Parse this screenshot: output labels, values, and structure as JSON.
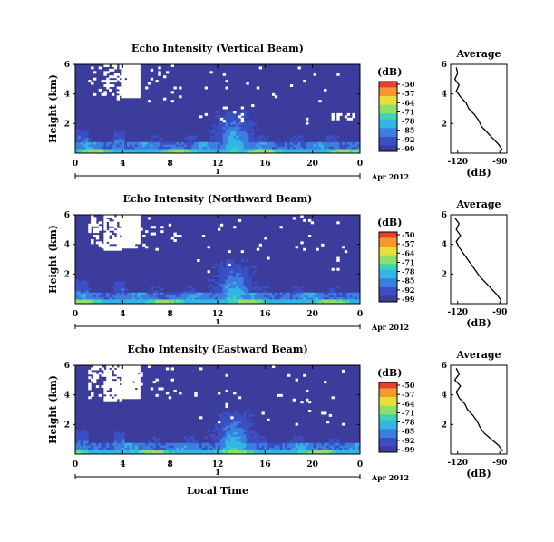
{
  "chart_data": [
    {
      "type": "heatmap",
      "title": "Echo Intensity (Vertical Beam)",
      "ylabel": "Height (km)",
      "xlim": [
        0,
        24
      ],
      "ylim": [
        0,
        6
      ],
      "x_ticks": [
        "0",
        "4",
        "8",
        "12",
        "16",
        "20",
        "0"
      ],
      "y_ticks": [
        "2",
        "4",
        "6"
      ],
      "date_tick": "1",
      "date_label": "Apr 2012",
      "colorbar": {
        "unit": "(dB)",
        "labels": [
          "-50",
          "-57",
          "-64",
          "-71",
          "-78",
          "-85",
          "-92",
          "-99"
        ]
      },
      "profile": {
        "title": "Average",
        "xlabel": "(dB)",
        "x_ticks": [
          "-120",
          "-90"
        ],
        "y_ticks": [
          "2",
          "4",
          "6"
        ],
        "xlim": [
          -125,
          -85
        ],
        "heights": [
          0.2,
          0.6,
          1.0,
          1.4,
          1.8,
          2.2,
          2.6,
          3.0,
          3.4,
          3.8,
          4.2,
          4.6,
          5.0,
          5.4,
          5.8
        ],
        "values": [
          -88,
          -91,
          -95,
          -99,
          -103,
          -105,
          -108,
          -112,
          -114,
          -118,
          -121,
          -119,
          -122,
          -120,
          -121
        ]
      }
    },
    {
      "type": "heatmap",
      "title": "Echo Intensity (Northward Beam)",
      "ylabel": "Height (km)",
      "xlim": [
        0,
        24
      ],
      "ylim": [
        0,
        6
      ],
      "x_ticks": [
        "0",
        "4",
        "8",
        "12",
        "16",
        "20",
        "0"
      ],
      "y_ticks": [
        "2",
        "4",
        "6"
      ],
      "date_tick": "1",
      "date_label": "Apr 2012",
      "colorbar": {
        "unit": "(dB)",
        "labels": [
          "-50",
          "-57",
          "-64",
          "-71",
          "-78",
          "-85",
          "-92",
          "-99"
        ]
      },
      "profile": {
        "title": "Average",
        "xlabel": "(dB)",
        "x_ticks": [
          "-120",
          "-90"
        ],
        "y_ticks": [
          "2",
          "4",
          "6"
        ],
        "xlim": [
          -125,
          -85
        ],
        "heights": [
          0.2,
          0.6,
          1.0,
          1.4,
          1.8,
          2.2,
          2.6,
          3.0,
          3.4,
          3.8,
          4.2,
          4.6,
          5.0,
          5.4,
          5.8
        ],
        "values": [
          -89,
          -92,
          -96,
          -100,
          -104,
          -107,
          -110,
          -113,
          -116,
          -119,
          -121,
          -118,
          -121,
          -119,
          -122
        ]
      }
    },
    {
      "type": "heatmap",
      "title": "Echo Intensity (Eastward Beam)",
      "ylabel": "Height (km)",
      "xlim": [
        0,
        24
      ],
      "ylim": [
        0,
        6
      ],
      "x_ticks": [
        "0",
        "4",
        "8",
        "12",
        "16",
        "20",
        "0"
      ],
      "y_ticks": [
        "2",
        "4",
        "6"
      ],
      "date_tick": "1",
      "date_label": "Apr 2012",
      "xlabel": "Local Time",
      "colorbar": {
        "unit": "(dB)",
        "labels": [
          "-50",
          "-57",
          "-64",
          "-71",
          "-78",
          "-85",
          "-92",
          "-99"
        ]
      },
      "profile": {
        "title": "Average",
        "xlabel": "(dB)",
        "x_ticks": [
          "-120",
          "-90"
        ],
        "y_ticks": [
          "2",
          "4",
          "6"
        ],
        "xlim": [
          -125,
          -85
        ],
        "heights": [
          0.2,
          0.6,
          1.0,
          1.4,
          1.8,
          2.2,
          2.6,
          3.0,
          3.4,
          3.8,
          4.2,
          4.6,
          5.0,
          5.4,
          5.8
        ],
        "values": [
          -88,
          -91,
          -96,
          -101,
          -104,
          -106,
          -109,
          -113,
          -115,
          -119,
          -121,
          -118,
          -122,
          -119,
          -121
        ]
      }
    }
  ],
  "colors": {
    "background": "#3c3c9c",
    "ramp": [
      "#3c3c9c",
      "#3b4fc4",
      "#3b7fe0",
      "#33b5e5",
      "#3fd3b4",
      "#8fe06a",
      "#e6e03a",
      "#f59a2a",
      "#e8402a"
    ]
  }
}
